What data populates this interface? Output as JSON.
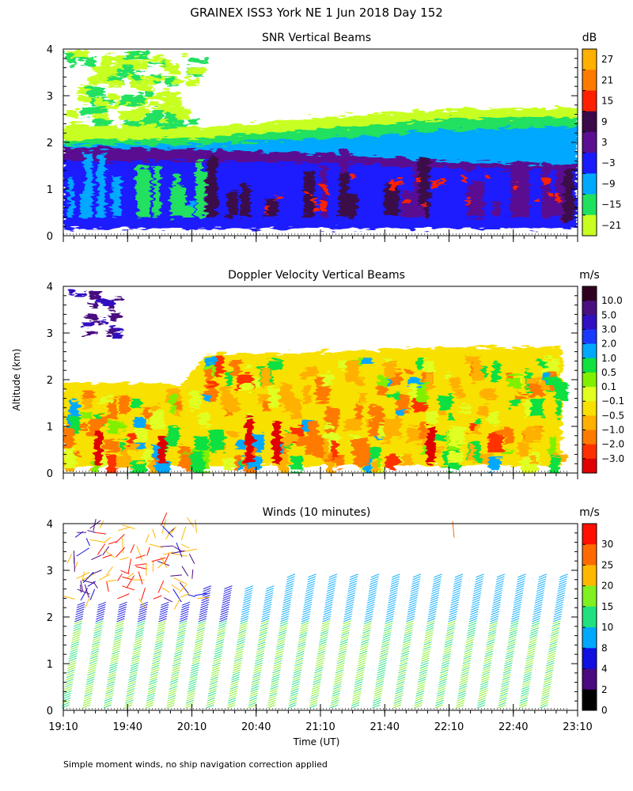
{
  "figure_title": "GRAINEX ISS3 York NE   1 Jun 2018 Day 152",
  "y_axis_label": "Altitude (km)",
  "x_axis_label": "Time (UT)",
  "footnote": "Simple moment winds, no ship navigation correction applied",
  "chart_data": [
    {
      "type": "heatmap",
      "title": "SNR Vertical Beams",
      "quantity": "SNR",
      "x_ticks": [
        "19:10",
        "19:40",
        "20:10",
        "20:40",
        "21:10",
        "21:40",
        "22:10",
        "22:40",
        "23:10"
      ],
      "ylim": [
        0,
        4
      ],
      "y_ticks": [
        "0",
        "1",
        "2",
        "3",
        "4"
      ],
      "colorbar": {
        "unit": "dB",
        "tick_labels": [
          "27",
          "21",
          "15",
          "9",
          "3",
          "−3",
          "−9",
          "−15",
          "−21"
        ],
        "colors": [
          "#ffb000",
          "#ff7a00",
          "#ff2000",
          "#3a0a4a",
          "#5a1090",
          "#1a1aff",
          "#00a8ff",
          "#20e060",
          "#c8ff20"
        ]
      }
    },
    {
      "type": "heatmap",
      "title": "Doppler Velocity Vertical Beams",
      "quantity": "Doppler velocity",
      "x_ticks": [
        "19:10",
        "19:40",
        "20:10",
        "20:40",
        "21:10",
        "21:40",
        "22:10",
        "22:40",
        "23:10"
      ],
      "ylim": [
        0,
        4
      ],
      "y_ticks": [
        "0",
        "1",
        "2",
        "3",
        "4"
      ],
      "colorbar": {
        "unit": "m/s",
        "tick_labels": [
          "10.0",
          "5.0",
          "3.0",
          "2.0",
          "1.0",
          "0.5",
          "0.1",
          "−0.1",
          "−0.5",
          "−1.0",
          "−2.0",
          "−3.0"
        ],
        "colors": [
          "#300020",
          "#4a1080",
          "#3010c0",
          "#1a3aff",
          "#00a8ff",
          "#10e040",
          "#80f000",
          "#e0ff20",
          "#f8e000",
          "#ffb000",
          "#ff7a00",
          "#ff3000",
          "#e00000"
        ]
      }
    },
    {
      "type": "wind_barbs",
      "title": "Winds (10 minutes)",
      "quantity": "Horizontal wind",
      "x_ticks": [
        "19:10",
        "19:40",
        "20:10",
        "20:40",
        "21:10",
        "21:40",
        "22:10",
        "22:40",
        "23:10"
      ],
      "ylim": [
        0,
        4
      ],
      "y_ticks": [
        "0",
        "1",
        "2",
        "3",
        "4"
      ],
      "colorbar": {
        "unit": "m/s",
        "tick_labels": [
          "30",
          "25",
          "20",
          "15",
          "10",
          "8",
          "4",
          "2",
          "0"
        ],
        "colors": [
          "#ff1000",
          "#ff6a00",
          "#ffb800",
          "#80f020",
          "#20e080",
          "#00a8ff",
          "#1010e0",
          "#4a0a80",
          "#000000"
        ]
      }
    }
  ]
}
